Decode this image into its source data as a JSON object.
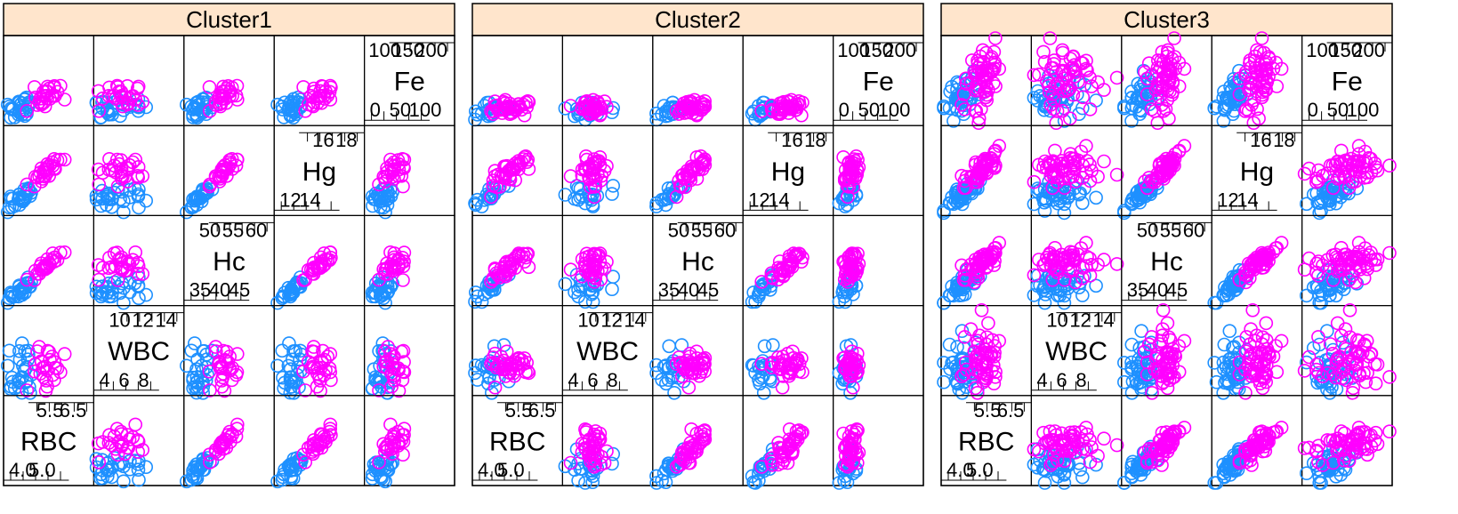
{
  "chart_data": {
    "type": "scatter",
    "panels": [
      "Cluster1",
      "Cluster2",
      "Cluster3"
    ],
    "variables": [
      {
        "name": "RBC",
        "lim": [
          3.7,
          6.8
        ],
        "ticks_low": [
          "4.0",
          "5.0"
        ],
        "ticks_high": [
          "5.5",
          "6.5"
        ],
        "ticks_high_alt": [
          "5.5"
        ],
        "ticks_low_alt": [
          "4.0"
        ]
      },
      {
        "name": "WBC",
        "lim": [
          3,
          15
        ],
        "ticks_low": [
          "4",
          "6",
          "8"
        ],
        "ticks_high": [
          "10",
          "12",
          "14"
        ],
        "ticks_low_alt": [
          "4"
        ],
        "ticks_high_alt": [
          "14"
        ]
      },
      {
        "name": "Hc",
        "lim": [
          33,
          62
        ],
        "ticks_low": [
          "35",
          "40",
          "45"
        ],
        "ticks_high": [
          "50",
          "55",
          "60"
        ],
        "ticks_low_alt": [
          "35"
        ],
        "ticks_high_alt": [
          "60"
        ]
      },
      {
        "name": "Hg",
        "lim": [
          11,
          19.5
        ],
        "ticks_low": [
          "12",
          "14"
        ],
        "ticks_high": [
          "16",
          "18"
        ],
        "ticks_low_alt": [
          "12"
        ],
        "ticks_high_alt": [
          "18"
        ]
      },
      {
        "name": "Fe",
        "lim": [
          0,
          230
        ],
        "ticks_low": [
          "0",
          "50",
          "100"
        ],
        "ticks_high": [
          "100",
          "150",
          "200"
        ],
        "ticks_low_alt": [
          "50"
        ],
        "ticks_high_alt": [
          "200"
        ]
      }
    ],
    "groups": [
      {
        "color": "#1e90ff"
      },
      {
        "color": "#ff00ff"
      }
    ],
    "clusters": [
      {
        "groups": [
          {
            "n": 30,
            "center": {
              "RBC": 4.3,
              "WBC": 6.2,
              "Hc": 38,
              "Hg": 12.7,
              "Fe": 45
            },
            "spread": {
              "RBC": 0.25,
              "WBC": 1.8,
              "Hc": 2.2,
              "Hg": 0.6,
              "Fe": 14
            }
          },
          {
            "n": 28,
            "center": {
              "RBC": 5.2,
              "WBC": 7.0,
              "Hc": 46,
              "Hg": 15.2,
              "Fe": 75
            },
            "spread": {
              "RBC": 0.3,
              "WBC": 1.8,
              "Hc": 2.4,
              "Hg": 0.7,
              "Fe": 18
            }
          }
        ]
      },
      {
        "groups": [
          {
            "n": 22,
            "center": {
              "RBC": 4.3,
              "WBC": 6.3,
              "Hc": 39,
              "Hg": 12.9,
              "Fe": 38
            },
            "spread": {
              "RBC": 0.25,
              "WBC": 1.2,
              "Hc": 2.2,
              "Hg": 0.6,
              "Fe": 10
            }
          },
          {
            "n": 40,
            "center": {
              "RBC": 5.0,
              "WBC": 7.0,
              "Hc": 46,
              "Hg": 15.2,
              "Fe": 45
            },
            "spread": {
              "RBC": 0.35,
              "WBC": 1.0,
              "Hc": 2.8,
              "Hg": 0.9,
              "Fe": 9
            }
          }
        ]
      },
      {
        "groups": [
          {
            "n": 45,
            "center": {
              "RBC": 4.4,
              "WBC": 6.8,
              "Hc": 39,
              "Hg": 13.0,
              "Fe": 70
            },
            "spread": {
              "RBC": 0.3,
              "WBC": 2.0,
              "Hc": 2.6,
              "Hg": 0.7,
              "Fe": 30
            }
          },
          {
            "n": 60,
            "center": {
              "RBC": 5.2,
              "WBC": 7.5,
              "Hc": 47,
              "Hg": 15.5,
              "Fe": 120
            },
            "spread": {
              "RBC": 0.35,
              "WBC": 2.2,
              "Hc": 3.0,
              "Hg": 0.9,
              "Fe": 45
            }
          }
        ]
      }
    ]
  }
}
